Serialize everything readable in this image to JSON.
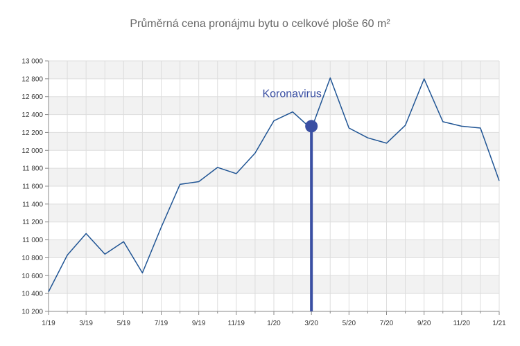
{
  "chart_data": {
    "type": "line",
    "title": "Průměrná cena pronájmu bytu o celkové ploše 60 m²",
    "xlabel": "",
    "ylabel": "",
    "ylim": [
      10200,
      13000
    ],
    "yticks": [
      10200,
      10400,
      10600,
      10800,
      11000,
      11200,
      11400,
      11600,
      11800,
      12000,
      12200,
      12400,
      12600,
      12800,
      13000
    ],
    "ytick_labels": [
      "10 200",
      "10 400",
      "10 600",
      "10 800",
      "11 000",
      "11 200",
      "11 400",
      "11 600",
      "11 800",
      "12 000",
      "12 200",
      "12 400",
      "12 600",
      "12 800",
      "13 000"
    ],
    "x": [
      "1/19",
      "2/19",
      "3/19",
      "4/19",
      "5/19",
      "6/19",
      "7/19",
      "8/19",
      "9/19",
      "10/19",
      "11/19",
      "12/19",
      "1/20",
      "2/20",
      "3/20",
      "4/20",
      "5/20",
      "6/20",
      "7/20",
      "8/20",
      "9/20",
      "10/20",
      "11/20",
      "12/20",
      "1/21"
    ],
    "xtick_labels": [
      "1/19",
      "3/19",
      "5/19",
      "7/19",
      "9/19",
      "11/19",
      "1/20",
      "3/20",
      "5/20",
      "7/20",
      "9/20",
      "11/20",
      "1/21"
    ],
    "series": [
      {
        "values": [
          10420,
          10830,
          11070,
          10840,
          10980,
          10630,
          11140,
          11620,
          11650,
          11810,
          11740,
          11970,
          12330,
          12430,
          12240,
          12810,
          12250,
          12140,
          12080,
          12280,
          12800,
          12320,
          12270,
          12250,
          11660
        ],
        "color": "#1f5494"
      }
    ],
    "annotation": {
      "label": "Koronavirus",
      "x": "3/20",
      "y": 12270,
      "color": "#3a4fa3"
    },
    "grid": true,
    "band_color": "#f2f2f2",
    "grid_color": "#dddddd"
  }
}
